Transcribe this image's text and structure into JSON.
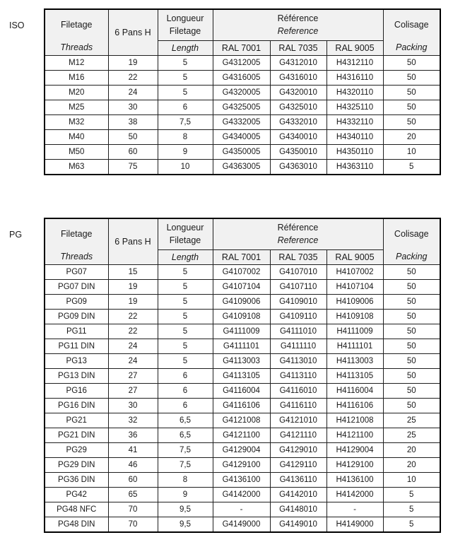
{
  "colors": {
    "header_bg": "#f1f1f1",
    "border": "#000000",
    "text": "#1a1a1a",
    "page_bg": "#ffffff"
  },
  "header_labels": {
    "filetage": "Filetage",
    "threads": "Threads",
    "pans": "6 Pans H",
    "longueur_line1": "Longueur",
    "longueur_line2": "Filetage",
    "length": "Length",
    "reference_fr": "Référence",
    "reference_en": "Reference",
    "ral_7001": "RAL 7001",
    "ral_7035": "RAL 7035",
    "ral_9005": "RAL 9005",
    "colisage": "Colisage",
    "packing": "Packing"
  },
  "tables": [
    {
      "label": "ISO",
      "rows": [
        [
          "M12",
          "19",
          "5",
          "G4312005",
          "G4312010",
          "H4312110",
          "50"
        ],
        [
          "M16",
          "22",
          "5",
          "G4316005",
          "G4316010",
          "H4316110",
          "50"
        ],
        [
          "M20",
          "24",
          "5",
          "G4320005",
          "G4320010",
          "H4320110",
          "50"
        ],
        [
          "M25",
          "30",
          "6",
          "G4325005",
          "G4325010",
          "H4325110",
          "50"
        ],
        [
          "M32",
          "38",
          "7,5",
          "G4332005",
          "G4332010",
          "H4332110",
          "50"
        ],
        [
          "M40",
          "50",
          "8",
          "G4340005",
          "G4340010",
          "H4340110",
          "20"
        ],
        [
          "M50",
          "60",
          "9",
          "G4350005",
          "G4350010",
          "H4350110",
          "10"
        ],
        [
          "M63",
          "75",
          "10",
          "G4363005",
          "G4363010",
          "H4363110",
          "5"
        ]
      ]
    },
    {
      "label": "PG",
      "rows": [
        [
          "PG07",
          "15",
          "5",
          "G4107002",
          "G4107010",
          "H4107002",
          "50"
        ],
        [
          "PG07 DIN",
          "19",
          "5",
          "G4107104",
          "G4107110",
          "H4107104",
          "50"
        ],
        [
          "PG09",
          "19",
          "5",
          "G4109006",
          "G4109010",
          "H4109006",
          "50"
        ],
        [
          "PG09 DIN",
          "22",
          "5",
          "G4109108",
          "G4109110",
          "H4109108",
          "50"
        ],
        [
          "PG11",
          "22",
          "5",
          "G4111009",
          "G4111010",
          "H4111009",
          "50"
        ],
        [
          "PG11 DIN",
          "24",
          "5",
          "G4111101",
          "G4111110",
          "H4111101",
          "50"
        ],
        [
          "PG13",
          "24",
          "5",
          "G4113003",
          "G4113010",
          "H4113003",
          "50"
        ],
        [
          "PG13 DIN",
          "27",
          "6",
          "G4113105",
          "G4113110",
          "H4113105",
          "50"
        ],
        [
          "PG16",
          "27",
          "6",
          "G4116004",
          "G4116010",
          "H4116004",
          "50"
        ],
        [
          "PG16 DIN",
          "30",
          "6",
          "G4116106",
          "G4116110",
          "H4116106",
          "50"
        ],
        [
          "PG21",
          "32",
          "6,5",
          "G4121008",
          "G4121010",
          "H4121008",
          "25"
        ],
        [
          "PG21 DIN",
          "36",
          "6,5",
          "G4121100",
          "G4121110",
          "H4121100",
          "25"
        ],
        [
          "PG29",
          "41",
          "7,5",
          "G4129004",
          "G4129010",
          "H4129004",
          "20"
        ],
        [
          "PG29 DIN",
          "46",
          "7,5",
          "G4129100",
          "G4129110",
          "H4129100",
          "20"
        ],
        [
          "PG36 DIN",
          "60",
          "8",
          "G4136100",
          "G4136110",
          "H4136100",
          "10"
        ],
        [
          "PG42",
          "65",
          "9",
          "G4142000",
          "G4142010",
          "H4142000",
          "5"
        ],
        [
          "PG48 NFC",
          "70",
          "9,5",
          "-",
          "G4148010",
          "-",
          "5"
        ],
        [
          "PG48 DIN",
          "70",
          "9,5",
          "G4149000",
          "G4149010",
          "H4149000",
          "5"
        ]
      ]
    }
  ]
}
